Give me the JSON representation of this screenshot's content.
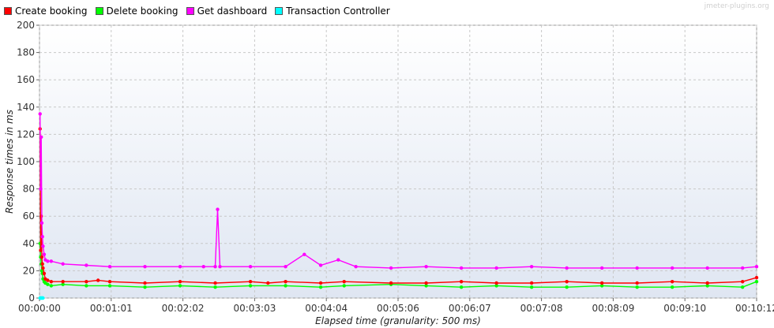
{
  "watermark": "jmeter-plugins.org",
  "legend": [
    {
      "label": "Create booking",
      "color": "#ff0000"
    },
    {
      "label": "Delete booking",
      "color": "#00ff00"
    },
    {
      "label": "Get dashboard",
      "color": "#ff00ff"
    },
    {
      "label": "Transaction Controller",
      "color": "#00ffff"
    }
  ],
  "chart_data": {
    "type": "line",
    "title": "",
    "xlabel": "Elapsed time (granularity: 500 ms)",
    "ylabel": "Response times in ms",
    "ylim": [
      0,
      200
    ],
    "xlim_seconds": [
      0,
      612
    ],
    "grid": true,
    "legend_position": "top",
    "y_ticks": [
      "0",
      "20",
      "40",
      "60",
      "80",
      "100",
      "120",
      "140",
      "160",
      "180",
      "200"
    ],
    "x_ticks": [
      "00:00:00",
      "00:01:01",
      "00:02:02",
      "00:03:03",
      "00:04:04",
      "00:05:06",
      "00:06:07",
      "00:07:08",
      "00:08:09",
      "00:09:10",
      "00:10:12"
    ],
    "series": [
      {
        "name": "Create booking",
        "color": "#ff0000",
        "x": [
          0.5,
          1,
          1.5,
          2,
          2.5,
          3,
          4,
          5,
          7,
          10,
          20,
          40,
          50,
          60,
          90,
          120,
          150,
          180,
          195,
          210,
          240,
          260,
          300,
          330,
          360,
          390,
          420,
          450,
          480,
          510,
          540,
          570,
          600,
          612
        ],
        "y": [
          124,
          35,
          60,
          30,
          25,
          22,
          18,
          14,
          13,
          12,
          12,
          12,
          13,
          12,
          11,
          12,
          11,
          12,
          11,
          12,
          11,
          12,
          11,
          11,
          12,
          11,
          11,
          12,
          11,
          11,
          12,
          11,
          12,
          15
        ]
      },
      {
        "name": "Delete booking",
        "color": "#00ff00",
        "x": [
          0.5,
          1,
          1.5,
          2,
          2.5,
          3,
          4,
          5,
          7,
          10,
          20,
          40,
          60,
          90,
          120,
          150,
          180,
          210,
          240,
          260,
          300,
          330,
          360,
          390,
          420,
          450,
          480,
          510,
          540,
          570,
          600,
          612
        ],
        "y": [
          40,
          30,
          25,
          20,
          18,
          14,
          12,
          11,
          10,
          9,
          10,
          9,
          9,
          8,
          9,
          8,
          9,
          9,
          8,
          9,
          10,
          9,
          8,
          9,
          8,
          8,
          9,
          8,
          8,
          9,
          8,
          12
        ]
      },
      {
        "name": "Get dashboard",
        "color": "#ff00ff",
        "x": [
          0.5,
          1,
          1.5,
          2,
          2.5,
          3,
          4,
          5,
          7,
          10,
          20,
          40,
          60,
          90,
          120,
          140,
          150,
          152,
          154,
          180,
          210,
          226,
          240,
          255,
          270,
          300,
          330,
          360,
          390,
          420,
          450,
          480,
          510,
          540,
          570,
          600,
          612
        ],
        "y": [
          135,
          80,
          118,
          55,
          45,
          38,
          32,
          28,
          27,
          27,
          25,
          24,
          23,
          23,
          23,
          23,
          23,
          65,
          23,
          23,
          23,
          32,
          24,
          28,
          23,
          22,
          23,
          22,
          22,
          23,
          22,
          22,
          22,
          22,
          22,
          22,
          23
        ]
      },
      {
        "name": "Transaction Controller",
        "color": "#00ffff",
        "x": [
          0.5,
          1,
          1.5,
          2,
          2.5,
          3
        ],
        "y": [
          0,
          0,
          0,
          0,
          0,
          0
        ]
      }
    ]
  }
}
